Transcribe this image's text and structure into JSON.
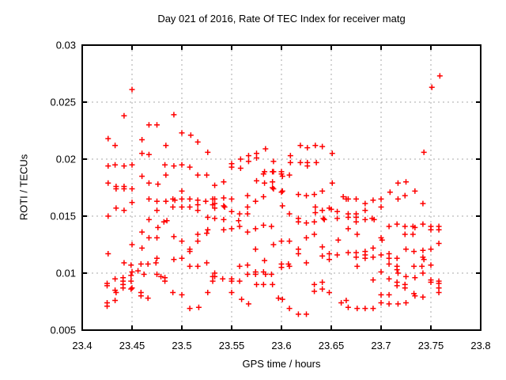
{
  "chart_data": {
    "type": "scatter",
    "title": "Day 021 of 2016, Rate Of TEC Index for receiver matg",
    "xlabel": "GPS time / hours",
    "ylabel": "ROTI / TECUs",
    "xlim": [
      23.4,
      23.8
    ],
    "ylim": [
      0.005,
      0.03
    ],
    "xticks": {
      "values": [
        23.4,
        23.45,
        23.5,
        23.55,
        23.6,
        23.65,
        23.7,
        23.75,
        23.8
      ],
      "labels": [
        "23.4",
        "23.45",
        "23.5",
        "23.55",
        "23.6",
        "23.65",
        "23.7",
        "23.75",
        "23.8"
      ]
    },
    "yticks": {
      "values": [
        0.005,
        0.01,
        0.015,
        0.02,
        0.025,
        0.03
      ],
      "labels": [
        "0.005",
        "0.01",
        "0.015",
        "0.02",
        "0.025",
        "0.03"
      ]
    },
    "grid": true,
    "legend": "none",
    "marker": "plus",
    "marker_color": "#ff0000",
    "series_name": "ROTI",
    "points": [
      [
        23.45,
        0.0261
      ],
      [
        23.442,
        0.0238
      ],
      [
        23.467,
        0.023
      ],
      [
        23.475,
        0.023
      ],
      [
        23.492,
        0.0239
      ],
      [
        23.5,
        0.0223
      ],
      [
        23.509,
        0.0221
      ],
      [
        23.516,
        0.0215
      ],
      [
        23.426,
        0.0218
      ],
      [
        23.433,
        0.0212
      ],
      [
        23.46,
        0.0217
      ],
      [
        23.484,
        0.0212
      ],
      [
        23.526,
        0.0206
      ],
      [
        23.46,
        0.0205
      ],
      [
        23.467,
        0.0204
      ],
      [
        23.426,
        0.0194
      ],
      [
        23.433,
        0.0195
      ],
      [
        23.442,
        0.0194
      ],
      [
        23.45,
        0.0195
      ],
      [
        23.483,
        0.0195
      ],
      [
        23.492,
        0.0194
      ],
      [
        23.5,
        0.0195
      ],
      [
        23.508,
        0.0193
      ],
      [
        23.516,
        0.0186
      ],
      [
        23.525,
        0.0186
      ],
      [
        23.46,
        0.0185
      ],
      [
        23.484,
        0.0186
      ],
      [
        23.426,
        0.0179
      ],
      [
        23.467,
        0.0179
      ],
      [
        23.476,
        0.0178
      ],
      [
        23.434,
        0.0176
      ],
      [
        23.442,
        0.0176
      ],
      [
        23.533,
        0.0177
      ],
      [
        23.55,
        0.0196
      ],
      [
        23.55,
        0.0193
      ],
      [
        23.559,
        0.02
      ],
      [
        23.559,
        0.0192
      ],
      [
        23.567,
        0.0203
      ],
      [
        23.567,
        0.0198
      ],
      [
        23.575,
        0.0205
      ],
      [
        23.575,
        0.0201
      ],
      [
        23.584,
        0.0209
      ],
      [
        23.582,
        0.0187
      ],
      [
        23.592,
        0.0198
      ],
      [
        23.592,
        0.0189
      ],
      [
        23.6,
        0.0189
      ],
      [
        23.6,
        0.0187
      ],
      [
        23.601,
        0.0185
      ],
      [
        23.608,
        0.0186
      ],
      [
        23.609,
        0.0203
      ],
      [
        23.609,
        0.0197
      ],
      [
        23.619,
        0.0212
      ],
      [
        23.619,
        0.0197
      ],
      [
        23.626,
        0.021
      ],
      [
        23.626,
        0.0197
      ],
      [
        23.626,
        0.0194
      ],
      [
        23.634,
        0.0212
      ],
      [
        23.635,
        0.0197
      ],
      [
        23.641,
        0.0211
      ],
      [
        23.651,
        0.0205
      ],
      [
        23.651,
        0.0179
      ],
      [
        23.542,
        0.018
      ],
      [
        23.575,
        0.0181
      ],
      [
        23.583,
        0.0179
      ],
      [
        23.591,
        0.018
      ],
      [
        23.583,
        0.0189
      ],
      [
        23.591,
        0.0189
      ],
      [
        23.592,
        0.0174
      ],
      [
        23.6,
        0.0171
      ],
      [
        23.759,
        0.0273
      ],
      [
        23.751,
        0.0263
      ],
      [
        23.743,
        0.0206
      ],
      [
        23.725,
        0.018
      ],
      [
        23.717,
        0.0179
      ],
      [
        23.434,
        0.0174
      ],
      [
        23.442,
        0.0174
      ],
      [
        23.45,
        0.0174
      ],
      [
        23.45,
        0.0162
      ],
      [
        23.467,
        0.0165
      ],
      [
        23.475,
        0.0163
      ],
      [
        23.484,
        0.0163
      ],
      [
        23.491,
        0.0165
      ],
      [
        23.493,
        0.0164
      ],
      [
        23.5,
        0.0172
      ],
      [
        23.5,
        0.0165
      ],
      [
        23.508,
        0.0165
      ],
      [
        23.516,
        0.0164
      ],
      [
        23.516,
        0.016
      ],
      [
        23.524,
        0.0163
      ],
      [
        23.531,
        0.0165
      ],
      [
        23.531,
        0.016
      ],
      [
        23.434,
        0.0157
      ],
      [
        23.442,
        0.0155
      ],
      [
        23.475,
        0.0155
      ],
      [
        23.491,
        0.0158
      ],
      [
        23.5,
        0.0158
      ],
      [
        23.508,
        0.0158
      ],
      [
        23.516,
        0.0155
      ],
      [
        23.426,
        0.015
      ],
      [
        23.467,
        0.0147
      ],
      [
        23.482,
        0.0145
      ],
      [
        23.485,
        0.0146
      ],
      [
        23.526,
        0.0149
      ],
      [
        23.476,
        0.014
      ],
      [
        23.46,
        0.0136
      ],
      [
        23.467,
        0.0131
      ],
      [
        23.475,
        0.0131
      ],
      [
        23.492,
        0.0132
      ],
      [
        23.5,
        0.0128
      ],
      [
        23.526,
        0.0138
      ],
      [
        23.525,
        0.0135
      ],
      [
        23.516,
        0.0134
      ],
      [
        23.516,
        0.0128
      ],
      [
        23.508,
        0.0121
      ],
      [
        23.508,
        0.0119
      ],
      [
        23.45,
        0.0125
      ],
      [
        23.46,
        0.0122
      ],
      [
        23.426,
        0.0117
      ],
      [
        23.492,
        0.0112
      ],
      [
        23.5,
        0.0113
      ],
      [
        23.508,
        0.0106
      ],
      [
        23.516,
        0.0106
      ],
      [
        23.525,
        0.0109
      ],
      [
        23.475,
        0.0113
      ],
      [
        23.442,
        0.0109
      ],
      [
        23.449,
        0.0107
      ],
      [
        23.459,
        0.0108
      ],
      [
        23.466,
        0.0108
      ],
      [
        23.474,
        0.0109
      ],
      [
        23.45,
        0.0101
      ],
      [
        23.449,
        0.0098
      ],
      [
        23.456,
        0.0102
      ],
      [
        23.462,
        0.0099
      ],
      [
        23.475,
        0.0099
      ],
      [
        23.479,
        0.0097
      ],
      [
        23.483,
        0.0096
      ],
      [
        23.483,
        0.0093
      ],
      [
        23.433,
        0.0095
      ],
      [
        23.425,
        0.0091
      ],
      [
        23.425,
        0.0089
      ],
      [
        23.441,
        0.0096
      ],
      [
        23.441,
        0.0093
      ],
      [
        23.441,
        0.009
      ],
      [
        23.441,
        0.0087
      ],
      [
        23.449,
        0.0093
      ],
      [
        23.449,
        0.0086
      ],
      [
        23.433,
        0.0085
      ],
      [
        23.434,
        0.0083
      ],
      [
        23.459,
        0.0083
      ],
      [
        23.459,
        0.008
      ],
      [
        23.466,
        0.0078
      ],
      [
        23.433,
        0.0076
      ],
      [
        23.425,
        0.0074
      ],
      [
        23.425,
        0.0071
      ],
      [
        23.45,
        0.0087
      ],
      [
        23.491,
        0.0083
      ],
      [
        23.5,
        0.0081
      ],
      [
        23.508,
        0.0069
      ],
      [
        23.517,
        0.007
      ],
      [
        23.526,
        0.0083
      ],
      [
        23.531,
        0.0097
      ],
      [
        23.531,
        0.0093
      ],
      [
        23.533,
        0.0165
      ],
      [
        23.533,
        0.0161
      ],
      [
        23.533,
        0.0157
      ],
      [
        23.542,
        0.0166
      ],
      [
        23.55,
        0.0165
      ],
      [
        23.542,
        0.0159
      ],
      [
        23.543,
        0.0158
      ],
      [
        23.566,
        0.0168
      ],
      [
        23.574,
        0.0163
      ],
      [
        23.582,
        0.0167
      ],
      [
        23.591,
        0.0175
      ],
      [
        23.601,
        0.0172
      ],
      [
        23.566,
        0.0158
      ],
      [
        23.55,
        0.0154
      ],
      [
        23.558,
        0.0152
      ],
      [
        23.566,
        0.0152
      ],
      [
        23.601,
        0.0159
      ],
      [
        23.608,
        0.0152
      ],
      [
        23.617,
        0.0169
      ],
      [
        23.625,
        0.0168
      ],
      [
        23.633,
        0.0169
      ],
      [
        23.641,
        0.0172
      ],
      [
        23.634,
        0.0158
      ],
      [
        23.634,
        0.0153
      ],
      [
        23.641,
        0.0155
      ],
      [
        23.642,
        0.0148
      ],
      [
        23.643,
        0.0147
      ],
      [
        23.648,
        0.0157
      ],
      [
        23.65,
        0.0156
      ],
      [
        23.656,
        0.0154
      ],
      [
        23.656,
        0.0148
      ],
      [
        23.662,
        0.0167
      ],
      [
        23.665,
        0.0165
      ],
      [
        23.617,
        0.0148
      ],
      [
        23.617,
        0.0145
      ],
      [
        23.625,
        0.0144
      ],
      [
        23.633,
        0.0145
      ],
      [
        23.542,
        0.0147
      ],
      [
        23.533,
        0.0148
      ],
      [
        23.55,
        0.0139
      ],
      [
        23.542,
        0.0138
      ],
      [
        23.557,
        0.0146
      ],
      [
        23.558,
        0.0141
      ],
      [
        23.566,
        0.0136
      ],
      [
        23.574,
        0.0139
      ],
      [
        23.582,
        0.0142
      ],
      [
        23.59,
        0.0141
      ],
      [
        23.625,
        0.0131
      ],
      [
        23.633,
        0.0134
      ],
      [
        23.657,
        0.0129
      ],
      [
        23.574,
        0.0121
      ],
      [
        23.592,
        0.0125
      ],
      [
        23.6,
        0.0128
      ],
      [
        23.608,
        0.0128
      ],
      [
        23.617,
        0.0121
      ],
      [
        23.617,
        0.0117
      ],
      [
        23.641,
        0.0123
      ],
      [
        23.641,
        0.0115
      ],
      [
        23.648,
        0.0117
      ],
      [
        23.648,
        0.0112
      ],
      [
        23.656,
        0.0116
      ],
      [
        23.583,
        0.0111
      ],
      [
        23.6,
        0.0108
      ],
      [
        23.6,
        0.0105
      ],
      [
        23.607,
        0.0108
      ],
      [
        23.608,
        0.0106
      ],
      [
        23.625,
        0.0109
      ],
      [
        23.558,
        0.0106
      ],
      [
        23.566,
        0.0107
      ],
      [
        23.566,
        0.0099
      ],
      [
        23.574,
        0.0101
      ],
      [
        23.574,
        0.0099
      ],
      [
        23.582,
        0.0101
      ],
      [
        23.584,
        0.0099
      ],
      [
        23.533,
        0.01
      ],
      [
        23.533,
        0.0097
      ],
      [
        23.541,
        0.0095
      ],
      [
        23.55,
        0.0095
      ],
      [
        23.55,
        0.0093
      ],
      [
        23.558,
        0.0093
      ],
      [
        23.575,
        0.009
      ],
      [
        23.582,
        0.009
      ],
      [
        23.591,
        0.009
      ],
      [
        23.59,
        0.0099
      ],
      [
        23.633,
        0.009
      ],
      [
        23.641,
        0.0092
      ],
      [
        23.633,
        0.0084
      ],
      [
        23.641,
        0.0086
      ],
      [
        23.648,
        0.0083
      ],
      [
        23.55,
        0.0083
      ],
      [
        23.56,
        0.0077
      ],
      [
        23.567,
        0.0073
      ],
      [
        23.597,
        0.0078
      ],
      [
        23.601,
        0.0077
      ],
      [
        23.608,
        0.0069
      ],
      [
        23.617,
        0.0064
      ],
      [
        23.625,
        0.0064
      ],
      [
        23.66,
        0.0074
      ],
      [
        23.665,
        0.0076
      ],
      [
        23.667,
        0.0165
      ],
      [
        23.675,
        0.0165
      ],
      [
        23.684,
        0.0161
      ],
      [
        23.692,
        0.0164
      ],
      [
        23.7,
        0.0165
      ],
      [
        23.7,
        0.0158
      ],
      [
        23.709,
        0.0171
      ],
      [
        23.717,
        0.0165
      ],
      [
        23.724,
        0.0168
      ],
      [
        23.734,
        0.0172
      ],
      [
        23.742,
        0.0161
      ],
      [
        23.684,
        0.0155
      ],
      [
        23.667,
        0.0152
      ],
      [
        23.675,
        0.0152
      ],
      [
        23.667,
        0.0149
      ],
      [
        23.675,
        0.0149
      ],
      [
        23.691,
        0.0148
      ],
      [
        23.693,
        0.0147
      ],
      [
        23.675,
        0.0145
      ],
      [
        23.684,
        0.0147
      ],
      [
        23.667,
        0.0139
      ],
      [
        23.676,
        0.0134
      ],
      [
        23.7,
        0.0131
      ],
      [
        23.701,
        0.0129
      ],
      [
        23.708,
        0.0141
      ],
      [
        23.716,
        0.0143
      ],
      [
        23.724,
        0.0141
      ],
      [
        23.724,
        0.0134
      ],
      [
        23.732,
        0.0141
      ],
      [
        23.732,
        0.0134
      ],
      [
        23.734,
        0.014
      ],
      [
        23.742,
        0.0143
      ],
      [
        23.75,
        0.0141
      ],
      [
        23.75,
        0.0138
      ],
      [
        23.758,
        0.0141
      ],
      [
        23.758,
        0.0138
      ],
      [
        23.758,
        0.0126
      ],
      [
        23.725,
        0.0121
      ],
      [
        23.733,
        0.0119
      ],
      [
        23.742,
        0.012
      ],
      [
        23.742,
        0.0114
      ],
      [
        23.743,
        0.0112
      ],
      [
        23.75,
        0.0121
      ],
      [
        23.75,
        0.0107
      ],
      [
        23.733,
        0.0106
      ],
      [
        23.741,
        0.0106
      ],
      [
        23.742,
        0.01
      ],
      [
        23.734,
        0.0096
      ],
      [
        23.667,
        0.0118
      ],
      [
        23.675,
        0.0118
      ],
      [
        23.675,
        0.0114
      ],
      [
        23.684,
        0.0119
      ],
      [
        23.684,
        0.0116
      ],
      [
        23.684,
        0.0113
      ],
      [
        23.692,
        0.0122
      ],
      [
        23.692,
        0.0114
      ],
      [
        23.676,
        0.0106
      ],
      [
        23.7,
        0.0116
      ],
      [
        23.708,
        0.0117
      ],
      [
        23.708,
        0.0113
      ],
      [
        23.708,
        0.0108
      ],
      [
        23.716,
        0.0113
      ],
      [
        23.716,
        0.0106
      ],
      [
        23.7,
        0.0101
      ],
      [
        23.716,
        0.0103
      ],
      [
        23.717,
        0.01
      ],
      [
        23.725,
        0.0097
      ],
      [
        23.692,
        0.0094
      ],
      [
        23.708,
        0.0095
      ],
      [
        23.716,
        0.0092
      ],
      [
        23.716,
        0.0089
      ],
      [
        23.724,
        0.009
      ],
      [
        23.724,
        0.0087
      ],
      [
        23.7,
        0.0081
      ],
      [
        23.708,
        0.0081
      ],
      [
        23.733,
        0.0082
      ],
      [
        23.734,
        0.008
      ],
      [
        23.742,
        0.0079
      ],
      [
        23.75,
        0.0094
      ],
      [
        23.758,
        0.0093
      ],
      [
        23.758,
        0.0091
      ],
      [
        23.758,
        0.0087
      ],
      [
        23.758,
        0.0083
      ],
      [
        23.75,
        0.0092
      ],
      [
        23.7,
        0.0074
      ],
      [
        23.708,
        0.0073
      ],
      [
        23.717,
        0.0073
      ],
      [
        23.725,
        0.0074
      ],
      [
        23.667,
        0.007
      ],
      [
        23.676,
        0.0069
      ],
      [
        23.684,
        0.0069
      ],
      [
        23.692,
        0.0069
      ]
    ]
  }
}
